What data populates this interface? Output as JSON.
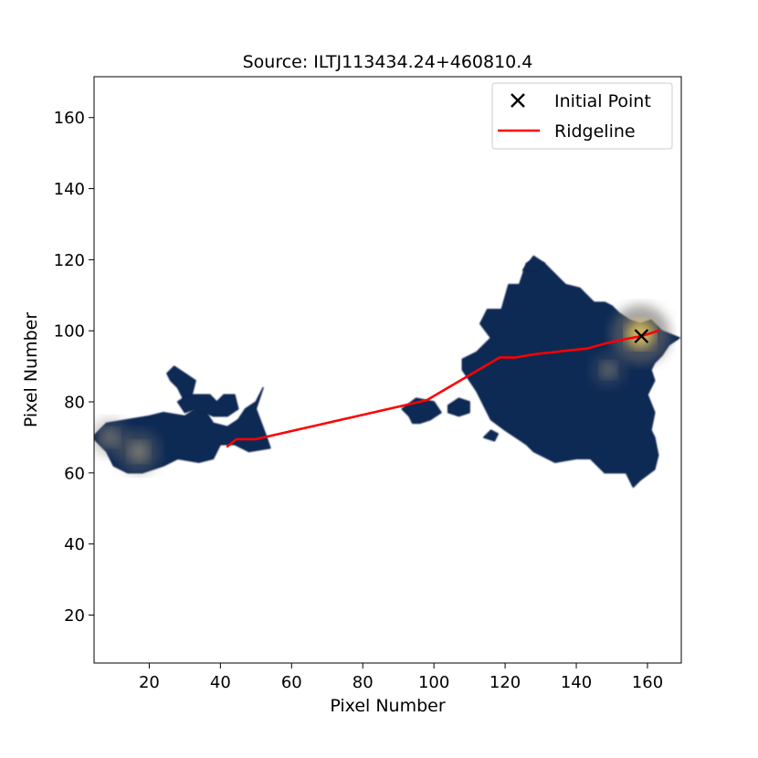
{
  "chart_data": {
    "type": "scatter",
    "title": "Source: ILTJ113434.24+460810.4",
    "xlabel": "Pixel Number",
    "ylabel": "Pixel Number",
    "xlim": [
      4.5,
      169.5
    ],
    "ylim": [
      6.5,
      171.5
    ],
    "xticks": [
      20,
      40,
      60,
      80,
      100,
      120,
      140,
      160
    ],
    "yticks": [
      20,
      40,
      60,
      80,
      100,
      120,
      140,
      160
    ],
    "grid": false,
    "legend_position": "top-right",
    "background_image": {
      "description_colormap": "cividis-like (navy to yellow)",
      "emission_regions": [
        {
          "vertices": [
            [
              4,
              70
            ],
            [
              8,
              74
            ],
            [
              14,
              75
            ],
            [
              20,
              76
            ],
            [
              24,
              77
            ],
            [
              30,
              76
            ],
            [
              33,
              78
            ],
            [
              36,
              77
            ],
            [
              38,
              74
            ],
            [
              42,
              73
            ],
            [
              45,
              75
            ],
            [
              47,
              78
            ],
            [
              50,
              80
            ],
            [
              52,
              84
            ],
            [
              50,
              78
            ],
            [
              53,
              70
            ],
            [
              54,
              67
            ],
            [
              48,
              66
            ],
            [
              44,
              68
            ],
            [
              40,
              68
            ],
            [
              38,
              64
            ],
            [
              34,
              63
            ],
            [
              28,
              64
            ],
            [
              24,
              62
            ],
            [
              18,
              60
            ],
            [
              14,
              60
            ],
            [
              10,
              62
            ],
            [
              8,
              66
            ]
          ]
        },
        {
          "vertices": [
            [
              25,
              88
            ],
            [
              27,
              90
            ],
            [
              30,
              88
            ],
            [
              33,
              86
            ],
            [
              32,
              82
            ],
            [
              30,
              80
            ],
            [
              28,
              84
            ],
            [
              26,
              86
            ]
          ]
        },
        {
          "vertices": [
            [
              28,
              80
            ],
            [
              31,
              82
            ],
            [
              37,
              82
            ],
            [
              39,
              80
            ],
            [
              41,
              82
            ],
            [
              44,
              82
            ],
            [
              45,
              78
            ],
            [
              42,
              76
            ],
            [
              38,
              76
            ],
            [
              33,
              78
            ],
            [
              30,
              77
            ]
          ]
        },
        {
          "vertices": [
            [
              91,
              78
            ],
            [
              95,
              81
            ],
            [
              100,
              80
            ],
            [
              102,
              77
            ],
            [
              99,
              75
            ],
            [
              96,
              74
            ],
            [
              94,
              74
            ],
            [
              93,
              76
            ]
          ]
        },
        {
          "vertices": [
            [
              104,
              79
            ],
            [
              107,
              81
            ],
            [
              110,
              80
            ],
            [
              110,
              77
            ],
            [
              107,
              76
            ],
            [
              104,
              77
            ]
          ]
        },
        {
          "vertices": [
            [
              108,
              92
            ],
            [
              112,
              94
            ],
            [
              116,
              98
            ],
            [
              113,
              102
            ],
            [
              115,
              106
            ],
            [
              119,
              106
            ],
            [
              121,
              113
            ],
            [
              124,
              113
            ],
            [
              126,
              119
            ],
            [
              128,
              120
            ],
            [
              131,
              119
            ],
            [
              133,
              117
            ],
            [
              137,
              113
            ],
            [
              141,
              112
            ],
            [
              145,
              108
            ],
            [
              148,
              108
            ],
            [
              150,
              107
            ],
            [
              152,
              105
            ],
            [
              155,
              103
            ],
            [
              158,
              102
            ],
            [
              161,
              103
            ],
            [
              164,
              100
            ],
            [
              169,
              98
            ],
            [
              166,
              96
            ],
            [
              164,
              93
            ],
            [
              162,
              91
            ],
            [
              161,
              89
            ],
            [
              162,
              86
            ],
            [
              160,
              82
            ],
            [
              162,
              77
            ],
            [
              161,
              72
            ],
            [
              162,
              70
            ],
            [
              163,
              65
            ],
            [
              162,
              61
            ],
            [
              158,
              58
            ],
            [
              156,
              56
            ],
            [
              154,
              60
            ],
            [
              148,
              60
            ],
            [
              144,
              64
            ],
            [
              140,
              64
            ],
            [
              134,
              63
            ],
            [
              128,
              66
            ],
            [
              126,
              68
            ],
            [
              123,
              70
            ],
            [
              120,
              72
            ],
            [
              116,
              75
            ],
            [
              114,
              79
            ],
            [
              112,
              83
            ],
            [
              110,
              86
            ],
            [
              108,
              89
            ]
          ]
        },
        {
          "vertices": [
            [
              114,
              70
            ],
            [
              116,
              72
            ],
            [
              118,
              71
            ],
            [
              117,
              69
            ]
          ]
        },
        {
          "vertices": [
            [
              125,
              117
            ],
            [
              128,
              121
            ],
            [
              131,
              119
            ],
            [
              129,
              117
            ]
          ]
        }
      ],
      "bright_spots": [
        {
          "x": 17,
          "y": 66,
          "peak": 0.55
        },
        {
          "x": 9,
          "y": 70,
          "peak": 0.4
        },
        {
          "x": 158,
          "y": 99,
          "peak": 1.0
        },
        {
          "x": 149,
          "y": 89,
          "peak": 0.3
        }
      ]
    },
    "series": [
      {
        "name": "Initial Point",
        "type": "scatter",
        "marker": "x",
        "color": "#000000",
        "points": [
          [
            158.3,
            98.5
          ]
        ]
      },
      {
        "name": "Ridgeline",
        "type": "line",
        "color": "#ff0000",
        "points": [
          [
            42,
            67.5
          ],
          [
            44.5,
            69.5
          ],
          [
            50,
            69.5
          ],
          [
            96,
            80
          ],
          [
            98,
            80.5
          ],
          [
            118.5,
            92.5
          ],
          [
            123,
            92.5
          ],
          [
            126,
            93
          ],
          [
            129,
            93.5
          ],
          [
            134,
            94
          ],
          [
            138,
            94.5
          ],
          [
            143,
            95
          ],
          [
            148.5,
            96.5
          ],
          [
            153,
            97.5
          ],
          [
            158.3,
            98.5
          ],
          [
            163,
            100
          ]
        ]
      }
    ]
  }
}
